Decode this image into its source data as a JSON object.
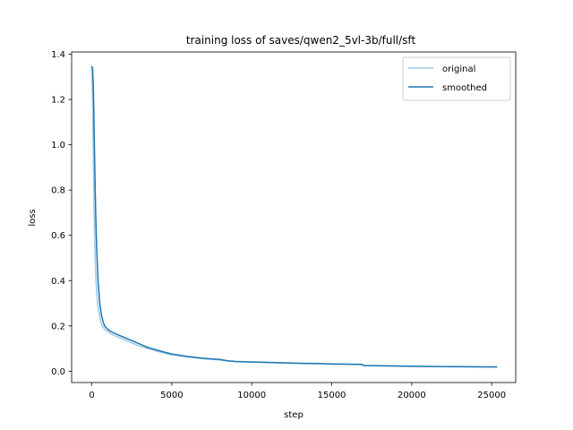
{
  "chart_data": {
    "type": "line",
    "title": "training loss of saves/qwen2_5vl-3b/full/sft",
    "xlabel": "step",
    "ylabel": "loss",
    "xlim": [
      -1260,
      26500
    ],
    "ylim": [
      -0.05,
      1.41
    ],
    "xticks": [
      0,
      5000,
      10000,
      15000,
      20000,
      25000
    ],
    "yticks": [
      0.0,
      0.2,
      0.4,
      0.6,
      0.8,
      1.0,
      1.2,
      1.4
    ],
    "legend_position": "top-right",
    "grid": false,
    "series": [
      {
        "name": "original",
        "color": "#9ec8e6",
        "x": [
          0,
          50,
          100,
          150,
          200,
          250,
          300,
          400,
          500,
          600,
          700,
          800,
          1000,
          1200,
          1500,
          2000,
          2500,
          3000,
          3500,
          4000,
          4500,
          5000,
          6000,
          7000,
          8000,
          8500,
          9000,
          10000,
          11000,
          12000,
          13000,
          14000,
          15000,
          16000,
          16900,
          17000,
          18000,
          19000,
          20000,
          21000,
          22000,
          23000,
          24000,
          25000,
          25300
        ],
        "y": [
          1.34,
          1.2,
          0.95,
          0.7,
          0.52,
          0.42,
          0.35,
          0.28,
          0.24,
          0.21,
          0.195,
          0.185,
          0.175,
          0.165,
          0.155,
          0.14,
          0.125,
          0.11,
          0.1,
          0.09,
          0.08,
          0.072,
          0.062,
          0.055,
          0.05,
          0.045,
          0.042,
          0.04,
          0.038,
          0.036,
          0.034,
          0.033,
          0.031,
          0.03,
          0.029,
          0.024,
          0.023,
          0.022,
          0.021,
          0.02,
          0.02,
          0.019,
          0.019,
          0.018,
          0.018
        ]
      },
      {
        "name": "smoothed",
        "color": "#1f77b4",
        "x": [
          0,
          50,
          100,
          150,
          200,
          250,
          300,
          400,
          500,
          600,
          700,
          800,
          1000,
          1200,
          1500,
          2000,
          2500,
          3000,
          3500,
          4000,
          4500,
          5000,
          6000,
          7000,
          8000,
          8500,
          9000,
          10000,
          11000,
          12000,
          13000,
          14000,
          15000,
          16000,
          16900,
          17000,
          18000,
          19000,
          20000,
          21000,
          22000,
          23000,
          24000,
          25000,
          25300
        ],
        "y": [
          1.345,
          1.34,
          1.25,
          1.05,
          0.85,
          0.68,
          0.55,
          0.39,
          0.3,
          0.25,
          0.22,
          0.2,
          0.185,
          0.175,
          0.165,
          0.15,
          0.135,
          0.12,
          0.105,
          0.095,
          0.085,
          0.076,
          0.065,
          0.057,
          0.052,
          0.046,
          0.043,
          0.041,
          0.039,
          0.037,
          0.035,
          0.034,
          0.032,
          0.031,
          0.03,
          0.025,
          0.024,
          0.023,
          0.022,
          0.021,
          0.02,
          0.02,
          0.019,
          0.019,
          0.019
        ]
      }
    ]
  }
}
